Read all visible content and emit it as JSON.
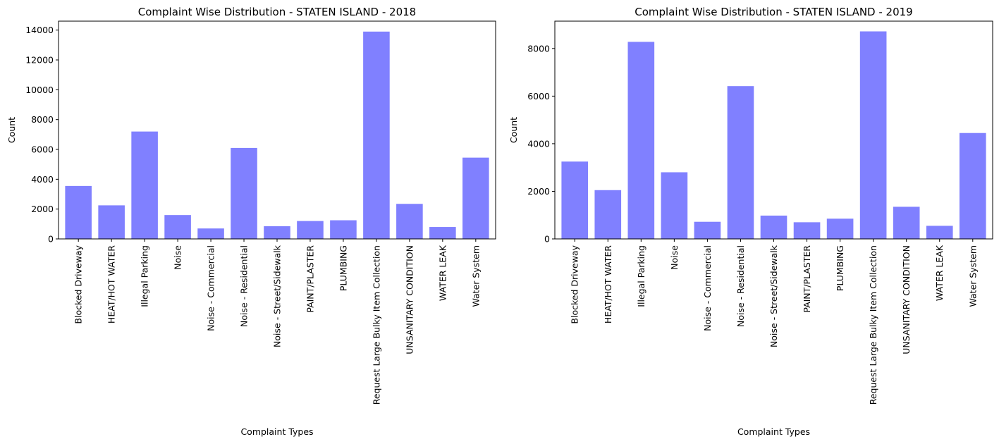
{
  "chart_data": [
    {
      "type": "bar",
      "title": "Complaint Wise Distribution - STATEN ISLAND - 2018",
      "xlabel": "Complaint Types",
      "ylabel": "Count",
      "ylim": [
        0,
        14600
      ],
      "yticks": [
        0,
        2000,
        4000,
        6000,
        8000,
        10000,
        12000,
        14000
      ],
      "categories": [
        "Blocked Driveway",
        "HEAT/HOT WATER",
        "Illegal Parking",
        "Noise",
        "Noise - Commercial",
        "Noise - Residential",
        "Noise - Street/Sidewalk",
        "PAINT/PLASTER",
        "PLUMBING",
        "Request Large Bulky Item Collection",
        "UNSANITARY CONDITION",
        "WATER LEAK",
        "Water System"
      ],
      "values": [
        3550,
        2250,
        7200,
        1600,
        700,
        6100,
        850,
        1200,
        1250,
        13900,
        2350,
        800,
        5450
      ],
      "bar_color": "#8080ff",
      "grid": false
    },
    {
      "type": "bar",
      "title": "Complaint Wise Distribution - STATEN ISLAND - 2019",
      "xlabel": "Complaint Types",
      "ylabel": "Count",
      "ylim": [
        0,
        9150
      ],
      "yticks": [
        0,
        2000,
        4000,
        6000,
        8000
      ],
      "categories": [
        "Blocked Driveway",
        "HEAT/HOT WATER",
        "Illegal Parking",
        "Noise",
        "Noise - Commercial",
        "Noise - Residential",
        "Noise - Street/Sidewalk",
        "PAINT/PLASTER",
        "PLUMBING",
        "Request Large Bulky Item Collection",
        "UNSANITARY CONDITION",
        "WATER LEAK",
        "Water System"
      ],
      "values": [
        3250,
        2050,
        8280,
        2800,
        720,
        6420,
        980,
        700,
        850,
        8720,
        1350,
        550,
        4450
      ],
      "bar_color": "#8080ff",
      "grid": false
    }
  ]
}
